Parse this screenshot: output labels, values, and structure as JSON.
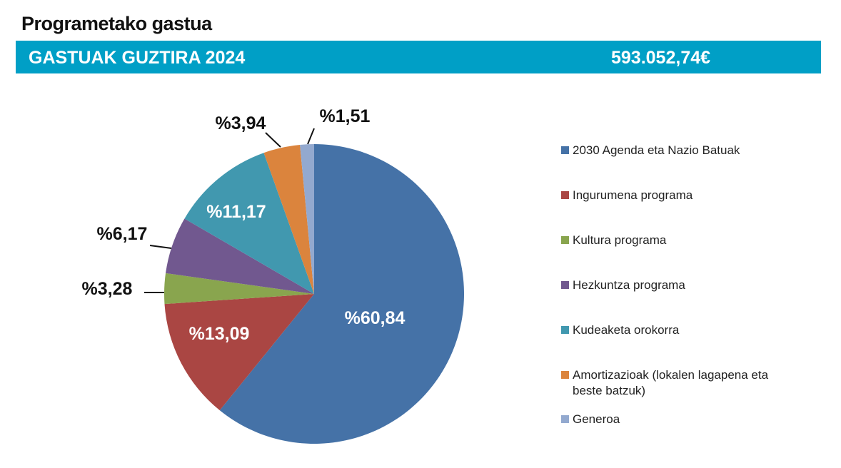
{
  "title": "Programetako gastua",
  "total_bar": {
    "label": "GASTUAK GUZTIRA 2024",
    "value": "593.052,74€",
    "color": "#009fc6"
  },
  "chart_data": {
    "type": "pie",
    "start": "top",
    "direction": "clockwise",
    "legend_position": "right",
    "categories": [
      "2030 Agenda eta Nazio Batuak",
      "Ingurumena programa",
      "Kultura programa",
      "Hezkuntza programa",
      "Kudeaketa orokorra",
      "Amortizazioak (lokalen lagapena eta beste batzuk)",
      "Generoa"
    ],
    "values": [
      60.84,
      13.09,
      3.28,
      6.17,
      11.17,
      3.94,
      1.51
    ],
    "labels": [
      "%60,84",
      "%13,09",
      "%3,28",
      "%6,17",
      "%11,17",
      "%3,94",
      "%1,51"
    ],
    "colors": [
      "#4572a7",
      "#aa4643",
      "#89a54e",
      "#71588f",
      "#4198af",
      "#db843d",
      "#93a9cf"
    ]
  }
}
